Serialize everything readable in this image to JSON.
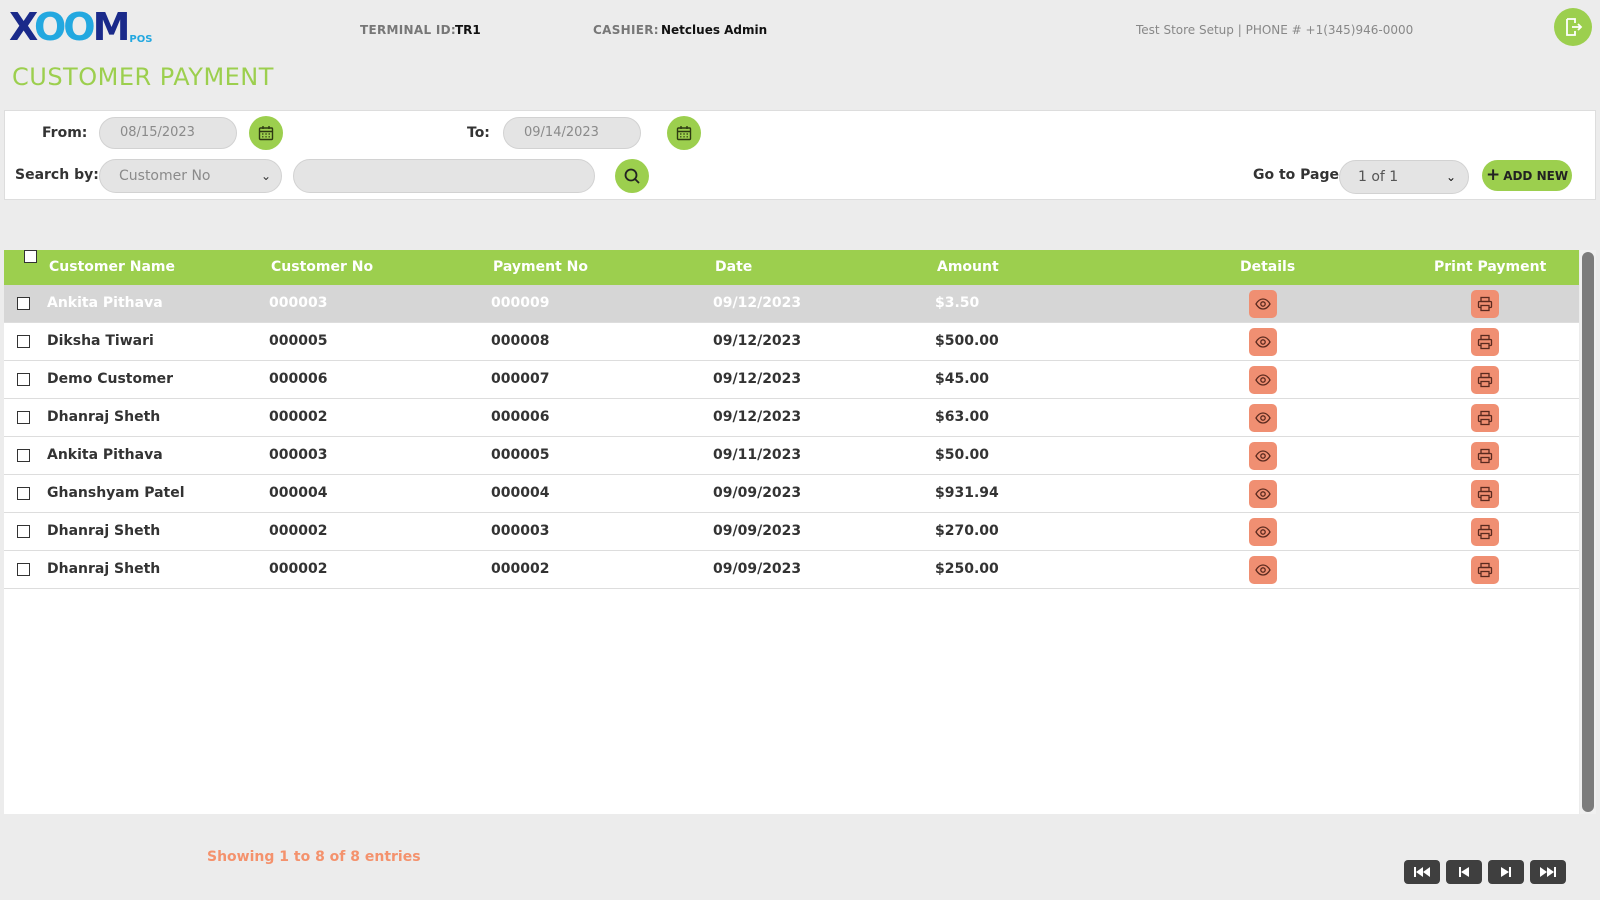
{
  "brand": {
    "logo_x": "X",
    "logo_oo": "OO",
    "logo_m": "M",
    "logo_pos": "POS"
  },
  "header": {
    "terminal_label": "TERMINAL ID:",
    "terminal_value": "TR1",
    "cashier_label": "CASHIER:",
    "cashier_value": "Netclues Admin",
    "store_info": "Test Store Setup | PHONE # +1(345)946-0000"
  },
  "page_title": "CUSTOMER PAYMENT",
  "filters": {
    "from_label": "From:",
    "from_date": "08/15/2023",
    "to_label": "To:",
    "to_date": "09/14/2023",
    "search_by_label": "Search by:",
    "search_by_value": "Customer No",
    "search_value": "",
    "go_to_page_label": "Go to Page",
    "page_value": "1 of 1",
    "add_new_label": "ADD NEW"
  },
  "table": {
    "columns": [
      "Customer Name",
      "Customer No",
      "Payment No",
      "Date",
      "Amount",
      "Details",
      "Print Payment"
    ],
    "rows": [
      {
        "name": "Ankita Pithava",
        "customer_no": "000003",
        "payment_no": "000009",
        "date": "09/12/2023",
        "amount": "$3.50"
      },
      {
        "name": "Diksha Tiwari",
        "customer_no": "000005",
        "payment_no": "000008",
        "date": "09/12/2023",
        "amount": "$500.00"
      },
      {
        "name": "Demo Customer",
        "customer_no": "000006",
        "payment_no": "000007",
        "date": "09/12/2023",
        "amount": "$45.00"
      },
      {
        "name": "Dhanraj Sheth",
        "customer_no": "000002",
        "payment_no": "000006",
        "date": "09/12/2023",
        "amount": "$63.00"
      },
      {
        "name": "Ankita Pithava",
        "customer_no": "000003",
        "payment_no": "000005",
        "date": "09/11/2023",
        "amount": "$50.00"
      },
      {
        "name": "Ghanshyam Patel",
        "customer_no": "000004",
        "payment_no": "000004",
        "date": "09/09/2023",
        "amount": "$931.94"
      },
      {
        "name": "Dhanraj Sheth",
        "customer_no": "000002",
        "payment_no": "000003",
        "date": "09/09/2023",
        "amount": "$270.00"
      },
      {
        "name": "Dhanraj Sheth",
        "customer_no": "000002",
        "payment_no": "000002",
        "date": "09/09/2023",
        "amount": "$250.00"
      }
    ]
  },
  "footer": {
    "showing_text": "Showing 1 to 8 of 8 entries"
  },
  "colors": {
    "accent_green": "#9ccf4e",
    "action_orange": "#f08f72",
    "showing_orange": "#f4926d",
    "logo_navy": "#1a2a8a",
    "logo_blue": "#23a8e0"
  },
  "icons": {
    "logout": "logout-icon",
    "calendar": "calendar-icon",
    "search": "search-icon",
    "details": "eye-icon",
    "print": "printer-icon",
    "pager": [
      "first-page-icon",
      "previous-page-icon",
      "next-page-icon",
      "last-page-icon"
    ]
  }
}
